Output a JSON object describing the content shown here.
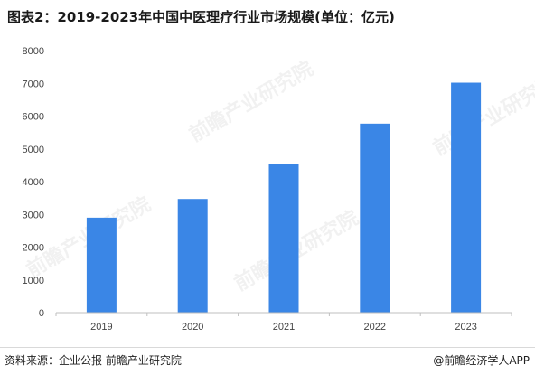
{
  "title": "图表2：2019-2023年中国中医理疗行业市场规模(单位：亿元)",
  "footer": {
    "source": "资料来源：企业公报 前瞻产业研究院",
    "brand": "@前瞻经济学人APP"
  },
  "watermark": "前瞻产业研究院",
  "colors": {
    "bar": "#3a86e6",
    "axis": "#bfbfbf",
    "text": "#444444"
  },
  "chart_data": {
    "type": "bar",
    "categories": [
      "2019",
      "2020",
      "2021",
      "2022",
      "2023"
    ],
    "values": [
      2900,
      3470,
      4540,
      5770,
      7020
    ],
    "ylim": [
      0,
      8000
    ],
    "yticks": [
      0,
      1000,
      2000,
      3000,
      4000,
      5000,
      6000,
      7000,
      8000
    ],
    "title": "图表2：2019-2023年中国中医理疗行业市场规模(单位：亿元)",
    "xlabel": "",
    "ylabel": "",
    "grid": false,
    "legend": "none"
  }
}
